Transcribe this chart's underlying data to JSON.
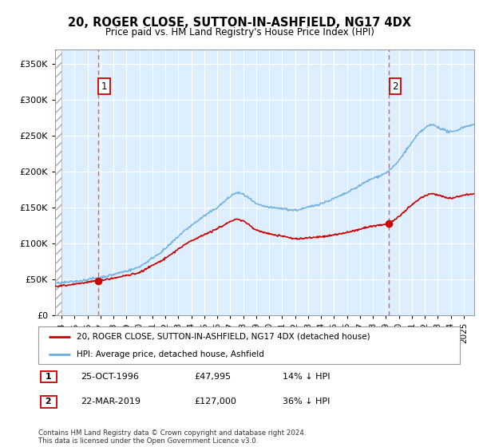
{
  "title": "20, ROGER CLOSE, SUTTON-IN-ASHFIELD, NG17 4DX",
  "subtitle": "Price paid vs. HM Land Registry's House Price Index (HPI)",
  "legend_line1": "20, ROGER CLOSE, SUTTON-IN-ASHFIELD, NG17 4DX (detached house)",
  "legend_line2": "HPI: Average price, detached house, Ashfield",
  "footnote": "Contains HM Land Registry data © Crown copyright and database right 2024.\nThis data is licensed under the Open Government Licence v3.0.",
  "sale1_date": "25-OCT-1996",
  "sale1_price": 47995,
  "sale1_label": "14% ↓ HPI",
  "sale2_date": "22-MAR-2019",
  "sale2_price": 127000,
  "sale2_label": "36% ↓ HPI",
  "sale1_x": 1996.82,
  "sale2_x": 2019.22,
  "hpi_color": "#6aaee0",
  "price_color": "#cc0000",
  "vline_color": "#e06060",
  "marker_color": "#cc0000",
  "plot_bg_color": "#ddeeff",
  "ylim": [
    0,
    370000
  ],
  "xlim_start": 1993.5,
  "xlim_end": 2025.8,
  "yticks": [
    0,
    50000,
    100000,
    150000,
    200000,
    250000,
    300000,
    350000
  ],
  "xticks": [
    1994,
    1995,
    1996,
    1997,
    1998,
    1999,
    2000,
    2001,
    2002,
    2003,
    2004,
    2005,
    2006,
    2007,
    2008,
    2009,
    2010,
    2011,
    2012,
    2013,
    2014,
    2015,
    2016,
    2017,
    2018,
    2019,
    2020,
    2021,
    2022,
    2023,
    2024,
    2025
  ]
}
